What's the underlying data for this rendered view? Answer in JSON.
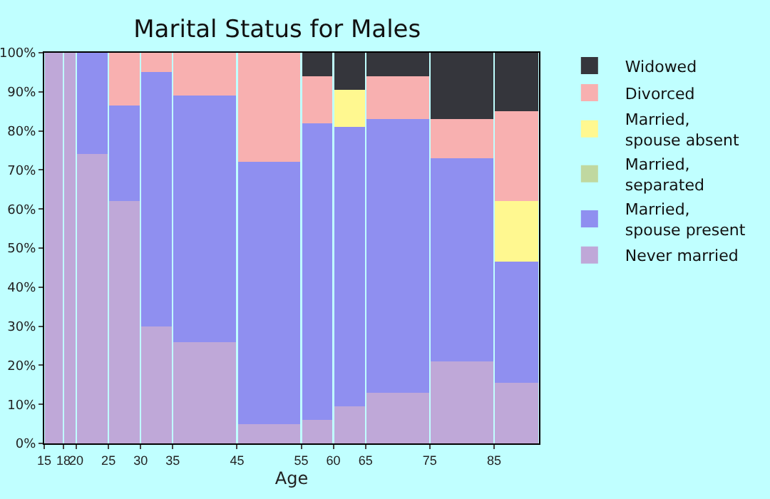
{
  "chart_data": {
    "type": "bar",
    "title": "Marital Status for Males",
    "xlabel": "Age",
    "stacked": true,
    "legend": "right",
    "grid": false,
    "x": [
      16.5,
      19,
      22.5,
      27.5,
      32.5,
      40,
      50,
      57.5,
      62.5,
      70,
      80,
      88.5
    ],
    "xlim": [
      15,
      92
    ],
    "xticks": [
      15,
      18,
      20,
      25,
      30,
      35,
      45,
      55,
      60,
      65,
      75,
      85
    ],
    "ylim": [
      0,
      100
    ],
    "yticks": [
      {
        "value": 0,
        "label": "0%"
      },
      {
        "value": 10,
        "label": "10%"
      },
      {
        "value": 20,
        "label": "20%"
      },
      {
        "value": 30,
        "label": "30%"
      },
      {
        "value": 40,
        "label": "40%"
      },
      {
        "value": 50,
        "label": "50%"
      },
      {
        "value": 60,
        "label": "60%"
      },
      {
        "value": 70,
        "label": "70%"
      },
      {
        "value": 80,
        "label": "80%"
      },
      {
        "value": 90,
        "label": "90%"
      },
      {
        "value": 100,
        "label": "100%"
      }
    ],
    "series": [
      {
        "name": "Never married",
        "color": "#bfa8d8",
        "values": [
          100,
          100,
          74,
          62,
          30,
          26,
          5,
          6,
          9.5,
          13,
          21,
          15.5
        ]
      },
      {
        "name": "Married, spouse present",
        "color": "#8f8ff0",
        "values": [
          0,
          0,
          26,
          24.5,
          65,
          63,
          67,
          76,
          71.5,
          70,
          52,
          31
        ]
      },
      {
        "name": "Married, separated",
        "color": "#c0d8a0",
        "values": [
          0,
          0,
          0,
          0,
          0,
          0,
          0,
          0,
          0,
          0,
          0,
          0
        ]
      },
      {
        "name": "Married, spouse absent",
        "color": "#fff890",
        "values": [
          0,
          0,
          0,
          0,
          0,
          0,
          0,
          0,
          9.5,
          0,
          0,
          15.5
        ]
      },
      {
        "name": "Divorced",
        "color": "#f8b0b0",
        "values": [
          0,
          0,
          0,
          13.5,
          5,
          11,
          28,
          12,
          0,
          11,
          10,
          23
        ]
      },
      {
        "name": "Widowed",
        "color": "#35363c",
        "values": [
          0,
          0,
          0,
          0,
          0,
          0,
          0,
          6,
          9.5,
          6,
          17,
          15
        ]
      }
    ]
  }
}
